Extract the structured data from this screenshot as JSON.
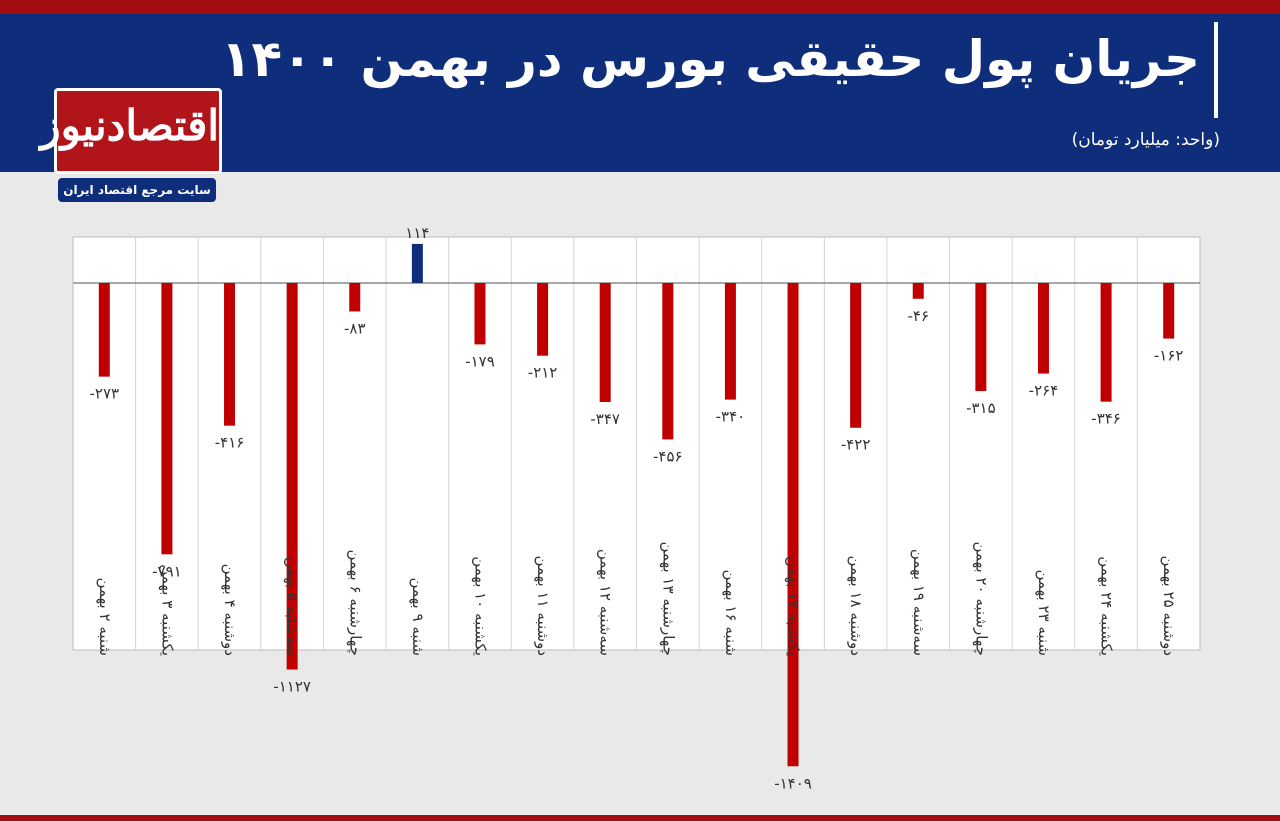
{
  "header": {
    "title": "جریان پول حقیقی بورس در بهمن ۱۴۰۰",
    "unit": "(واحد: میلیارد تومان)"
  },
  "logo": {
    "name": "اقتصادنیوز",
    "tagline": "سایت مرجع اقتصاد ایران"
  },
  "colors": {
    "header_bg": "#0e2d7a",
    "accent_red": "#a30d12",
    "negative_bar": "#c00000",
    "positive_bar": "#0e2d7a"
  },
  "chart_data": {
    "type": "bar",
    "title": "جریان پول حقیقی بورس در بهمن ۱۴۰۰",
    "ylabel": "",
    "grid": true,
    "categories": [
      "شنبه ۲ بهمن",
      "یکشنبه ۳ بهمن",
      "دوشنبه ۴ بهمن",
      "سه‌شنبه ۵ بهمن",
      "چهارشنبه ۶ بهمن",
      "شنبه ۹ بهمن",
      "یکشنبه ۱۰ بهمن",
      "دوشنبه ۱۱ بهمن",
      "سه‌شنبه ۱۲ بهمن",
      "چهارشنبه ۱۳ بهمن",
      "شنبه ۱۶ بهمن",
      "یکشنبه ۱۷ بهمن",
      "دوشنبه ۱۸ بهمن",
      "سه‌شنبه ۱۹ بهمن",
      "چهارشنبه ۲۰ بهمن",
      "شنبه ۲۳ بهمن",
      "یکشنبه ۲۴ بهمن",
      "دوشنبه ۲۵ بهمن"
    ],
    "values": [
      -273,
      -791,
      -416,
      -1127,
      -83,
      114,
      -179,
      -212,
      -347,
      -456,
      -340,
      -1409,
      -422,
      -46,
      -315,
      -264,
      -346,
      -162
    ],
    "value_labels": [
      "-۲۷۳",
      "-۷۹۱",
      "-۴۱۶",
      "-۱۱۲۷",
      "-۸۳",
      "۱۱۴",
      "-۱۷۹",
      "-۲۱۲",
      "-۳۴۷",
      "-۴۵۶",
      "-۳۴۰",
      "-۱۴۰۹",
      "-۴۲۲",
      "-۴۶",
      "-۳۱۵",
      "-۲۶۴",
      "-۳۴۶",
      "-۱۶۲"
    ],
    "ylim": [
      -1600,
      200
    ]
  }
}
